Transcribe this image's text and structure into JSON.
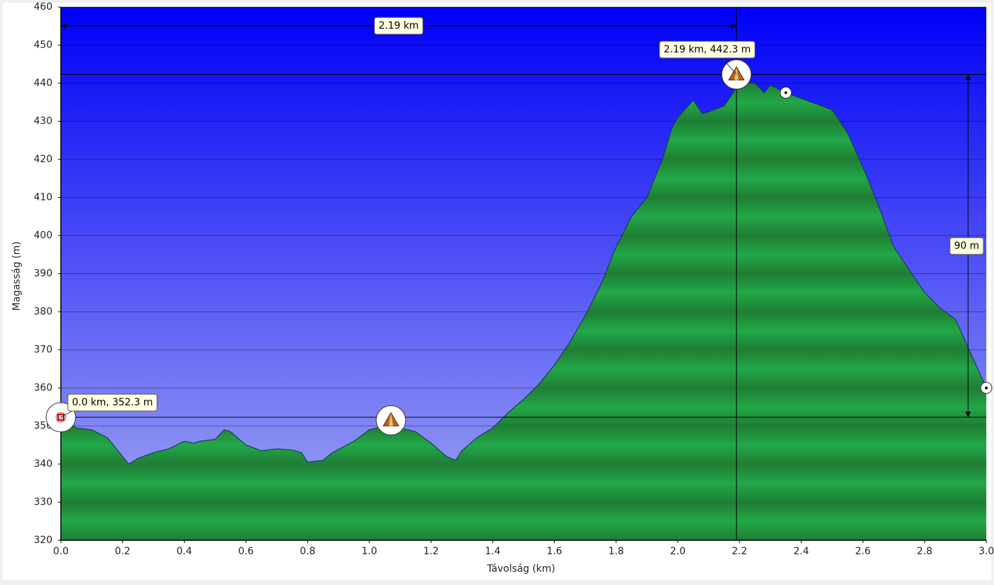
{
  "chart_data": {
    "type": "area",
    "y_label": "Magasság (m)",
    "x_label": "Távolság   (km)",
    "xlim": [
      0,
      3
    ],
    "ylim": [
      320,
      460
    ],
    "xticks": [
      {
        "value": 0,
        "label": "0.0"
      },
      0.2,
      0.4,
      0.6,
      0.8,
      {
        "value": 1,
        "label": "1.0"
      },
      1.2,
      1.4,
      1.6,
      1.8,
      {
        "value": 2,
        "label": "2.0"
      },
      2.2,
      2.4,
      2.6,
      2.8,
      {
        "value": 3,
        "label": "3.0"
      }
    ],
    "yticks": [
      320,
      330,
      340,
      350,
      360,
      370,
      380,
      390,
      400,
      410,
      420,
      430,
      440,
      450,
      460
    ],
    "grid": true,
    "color": "#1e9a40",
    "x": [
      0,
      0.02,
      0.05,
      0.1,
      0.15,
      0.2,
      0.22,
      0.25,
      0.3,
      0.35,
      0.4,
      0.43,
      0.45,
      0.5,
      0.53,
      0.55,
      0.6,
      0.65,
      0.7,
      0.75,
      0.78,
      0.8,
      0.85,
      0.88,
      0.95,
      1.0,
      1.05,
      1.1,
      1.15,
      1.2,
      1.25,
      1.28,
      1.3,
      1.35,
      1.4,
      1.45,
      1.5,
      1.55,
      1.6,
      1.65,
      1.7,
      1.75,
      1.8,
      1.85,
      1.9,
      1.95,
      1.98,
      2.0,
      2.05,
      2.08,
      2.1,
      2.15,
      2.2,
      2.25,
      2.28,
      2.3,
      2.35,
      2.4,
      2.45,
      2.5,
      2.55,
      2.6,
      2.65,
      2.7,
      2.75,
      2.8,
      2.85,
      2.9,
      2.95,
      3.0
    ],
    "values": [
      352.3,
      351,
      349.5,
      349,
      347,
      342,
      340,
      341.5,
      343,
      344,
      346,
      345.5,
      346,
      346.5,
      349,
      348.5,
      345,
      343.5,
      344,
      343.7,
      343,
      340.5,
      341,
      343,
      346,
      349,
      350,
      349.5,
      348.5,
      345.5,
      342,
      341,
      343.5,
      347,
      349.5,
      353.5,
      357,
      361,
      366,
      372,
      379,
      387,
      397,
      405,
      410,
      420,
      428,
      431,
      435.5,
      432,
      432.5,
      434,
      440,
      440,
      437.5,
      439.5,
      437.5,
      436,
      434.5,
      433,
      427,
      418,
      408,
      397,
      391,
      385,
      381,
      378,
      369,
      360
    ],
    "annotations": [
      {
        "x": 2.19,
        "y": 442.3,
        "label": "2.19 km, 442.3 m"
      },
      {
        "x": 0,
        "y": 352.3,
        "label": "0.0 km, 352.3 m"
      }
    ],
    "distance": {
      "value": 2.19,
      "label": "2.19 km"
    },
    "height_difference": {
      "value": 90,
      "label": "90 m"
    },
    "waypoints": {
      "x": [
        0,
        1.07,
        2.19,
        2.35,
        3.0
      ],
      "y": [
        352.3,
        351.5,
        442.3,
        437.5,
        360
      ],
      "kind": [
        "flag",
        "summit",
        "summit",
        "point",
        "point"
      ]
    }
  }
}
